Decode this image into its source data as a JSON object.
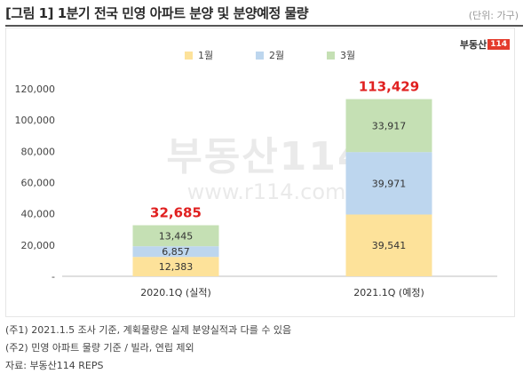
{
  "header": {
    "title": "[그림 1] 1분기 전국 민영 아파트 분양 및 분양예정 물량",
    "unit": "(단위: 가구)"
  },
  "logo": {
    "text": "부동산",
    "box": "114"
  },
  "watermark": {
    "brand": "부동산114",
    "url": "www.r114.com"
  },
  "chart_data": {
    "type": "bar",
    "stacked": true,
    "categories": [
      "2020.1Q (실적)",
      "2021.1Q (예정)"
    ],
    "series": [
      {
        "name": "1월",
        "color": "#fde29a",
        "values": [
          12383,
          39541
        ]
      },
      {
        "name": "2월",
        "color": "#bdd6ee",
        "values": [
          6857,
          39971
        ]
      },
      {
        "name": "3월",
        "color": "#c5e0b4",
        "values": [
          13445,
          33917
        ]
      }
    ],
    "totals": [
      "32,685",
      "113,429"
    ],
    "total_color": "#e02020",
    "ylim": [
      0,
      120000
    ],
    "yticks": [
      0,
      20000,
      40000,
      60000,
      80000,
      100000,
      120000
    ],
    "ytick_labels": [
      "-",
      "20,000",
      "40,000",
      "60,000",
      "80,000",
      "100,000",
      "120,000"
    ],
    "value_labels": [
      [
        "12,383",
        "6,857",
        "13,445"
      ],
      [
        "39,541",
        "39,971",
        "33,917"
      ]
    ],
    "grid": false,
    "legend_position": "top"
  },
  "notes": [
    "(주1) 2021.1.5 조사 기준, 계획물량은 실제 분양실적과 다를 수 있음",
    "(주2) 민영 아파트 물량 기준 / 빌라, 연립 제외",
    "자료: 부동산114 REPS"
  ]
}
